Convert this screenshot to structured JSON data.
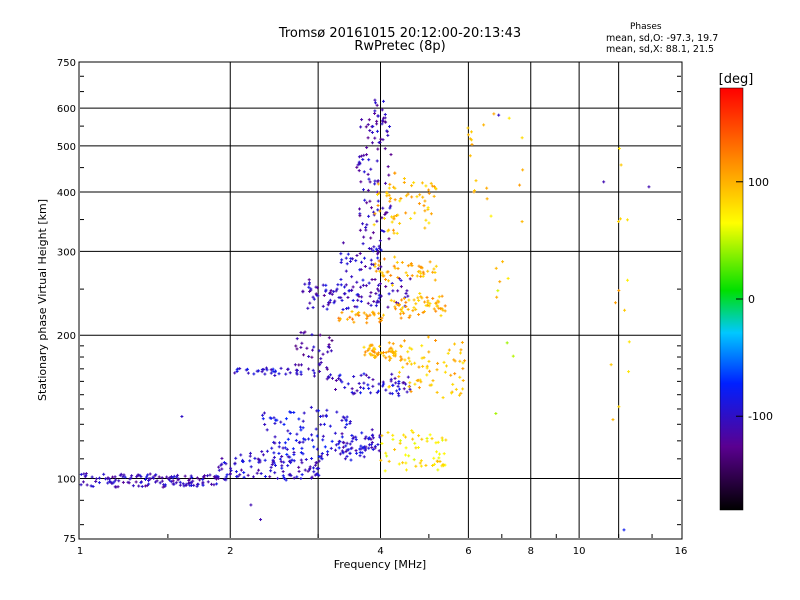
{
  "header": {
    "title_line1": "Tromsø 20161015 20:12:00-20:13:43",
    "title_line2": "RwPretec (8p)",
    "stats_title": "Phases",
    "stats_o": "mean, sd,O: -97.3, 19.7",
    "stats_x": "mean, sd,X:  88.1, 21.5"
  },
  "chart_data": {
    "type": "scatter",
    "xlabel": "Frequency [MHz]",
    "ylabel": "Stationary phase Virtual Height [km]",
    "xscale": "log",
    "yscale": "log",
    "xlim": [
      1,
      16
    ],
    "ylim": [
      75,
      750
    ],
    "xticks": [
      {
        "value": 1,
        "label": "1"
      },
      {
        "value": 2,
        "label": "2"
      },
      {
        "value": 4,
        "label": "4"
      },
      {
        "value": 6,
        "label": "6"
      },
      {
        "value": 8,
        "label": "8"
      },
      {
        "value": 10,
        "label": "10"
      },
      {
        "value": 16,
        "label": "16"
      }
    ],
    "yticks": [
      {
        "value": 75,
        "label": "75"
      },
      {
        "value": 100,
        "label": "100"
      },
      {
        "value": 200,
        "label": "200"
      },
      {
        "value": 300,
        "label": "300"
      },
      {
        "value": 400,
        "label": "400"
      },
      {
        "value": 500,
        "label": "500"
      },
      {
        "value": 600,
        "label": "600"
      },
      {
        "value": 750,
        "label": "750"
      }
    ],
    "grid": true,
    "colorbar": {
      "label": "[deg]",
      "min": -180,
      "max": 180,
      "ticks": [
        {
          "value": 100,
          "label": "100"
        },
        {
          "value": 0,
          "label": "0"
        },
        {
          "value": -100,
          "label": "-100"
        }
      ]
    },
    "traces": [
      {
        "x0": 1.0,
        "x1": 1.9,
        "y0": 96,
        "y1": 102,
        "phase": -105,
        "count": 140,
        "spread": 0.015
      },
      {
        "x0": 1.9,
        "x1": 3.1,
        "y0": 100,
        "y1": 112,
        "phase": -100,
        "count": 110,
        "spread": 0.03
      },
      {
        "x0": 2.3,
        "x1": 3.5,
        "y0": 110,
        "y1": 140,
        "phase": -90,
        "count": 110,
        "spread": 0.05
      },
      {
        "x0": 3.3,
        "x1": 4.0,
        "y0": 112,
        "y1": 125,
        "phase": -100,
        "count": 60,
        "spread": 0.03
      },
      {
        "x0": 4.0,
        "x1": 5.4,
        "y0": 105,
        "y1": 125,
        "phase": 75,
        "count": 60,
        "spread": 0.04
      },
      {
        "x0": 2.0,
        "x1": 2.8,
        "y0": 165,
        "y1": 170,
        "phase": -95,
        "count": 35,
        "spread": 0.01
      },
      {
        "x0": 2.7,
        "x1": 3.2,
        "y0": 160,
        "y1": 200,
        "phase": -115,
        "count": 45,
        "spread": 0.05
      },
      {
        "x0": 3.2,
        "x1": 4.6,
        "y0": 150,
        "y1": 165,
        "phase": -100,
        "count": 60,
        "spread": 0.03
      },
      {
        "x0": 3.7,
        "x1": 4.3,
        "y0": 180,
        "y1": 190,
        "phase": 100,
        "count": 50,
        "spread": 0.03
      },
      {
        "x0": 4.1,
        "x1": 5.9,
        "y0": 150,
        "y1": 195,
        "phase": 95,
        "count": 80,
        "spread": 0.04
      },
      {
        "x0": 2.8,
        "x1": 4.6,
        "y0": 230,
        "y1": 260,
        "phase": -105,
        "count": 110,
        "spread": 0.04
      },
      {
        "x0": 3.3,
        "x1": 4.1,
        "y0": 215,
        "y1": 225,
        "phase": 110,
        "count": 30,
        "spread": 0.03
      },
      {
        "x0": 4.2,
        "x1": 5.4,
        "y0": 220,
        "y1": 240,
        "phase": 100,
        "count": 60,
        "spread": 0.04
      },
      {
        "x0": 3.3,
        "x1": 4.0,
        "y0": 270,
        "y1": 310,
        "phase": -100,
        "count": 40,
        "spread": 0.05
      },
      {
        "x0": 3.9,
        "x1": 5.2,
        "y0": 260,
        "y1": 290,
        "phase": 100,
        "count": 50,
        "spread": 0.05
      },
      {
        "x0": 3.6,
        "x1": 4.2,
        "y0": 320,
        "y1": 560,
        "phase": -110,
        "count": 90,
        "spread": 0.05
      },
      {
        "x0": 3.9,
        "x1": 5.2,
        "y0": 330,
        "y1": 430,
        "phase": 95,
        "count": 70,
        "spread": 0.06
      },
      {
        "x0": 3.9,
        "x1": 4.1,
        "y0": 560,
        "y1": 620,
        "phase": -110,
        "count": 15,
        "spread": 0.02
      },
      {
        "x0": 6.0,
        "x1": 6.2,
        "y0": 400,
        "y1": 560,
        "phase": 100,
        "count": 10,
        "spread": 0.03
      },
      {
        "x0": 6.5,
        "x1": 7.7,
        "y0": 240,
        "y1": 580,
        "phase": 90,
        "count": 14,
        "spread": 0.1
      },
      {
        "x0": 12.0,
        "x1": 12.1,
        "y0": 105,
        "y1": 540,
        "phase": 90,
        "count": 14,
        "spread": 0.3
      },
      {
        "x0": 7.0,
        "x1": 7.1,
        "y0": 110,
        "y1": 660,
        "phase": 60,
        "count": 5,
        "spread": 0.3
      }
    ],
    "isolated_points": [
      {
        "x": 13.8,
        "y": 410,
        "phase": -110
      },
      {
        "x": 11.2,
        "y": 420,
        "phase": -110
      },
      {
        "x": 12.3,
        "y": 78,
        "phase": -80
      },
      {
        "x": 2.2,
        "y": 88,
        "phase": -110
      },
      {
        "x": 2.3,
        "y": 82,
        "phase": -110
      },
      {
        "x": 1.6,
        "y": 135,
        "phase": -100
      },
      {
        "x": 6.9,
        "y": 580,
        "phase": -100
      }
    ]
  }
}
